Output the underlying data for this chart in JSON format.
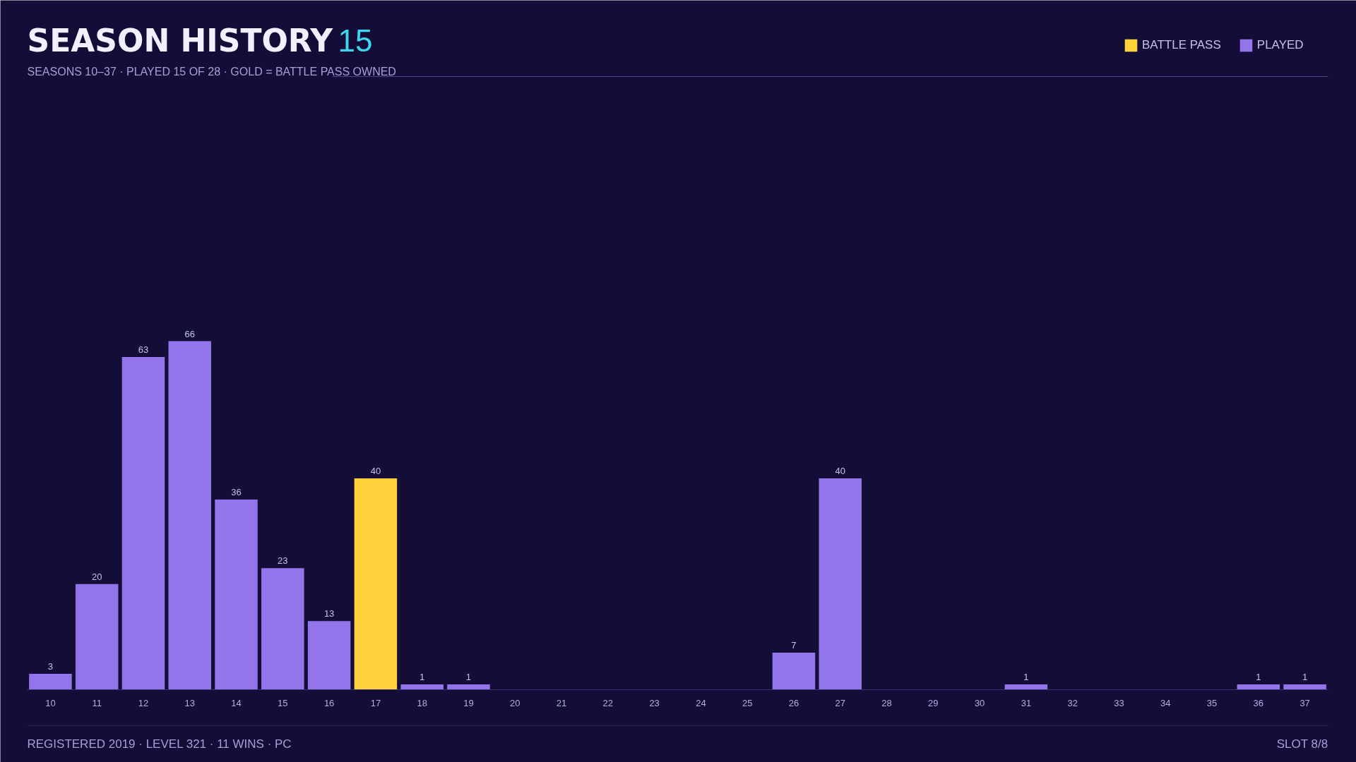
{
  "chart_data": {
    "type": "bar",
    "title": "SEASON HISTORY 15",
    "subtitle": "SEASONS 10–37  ·  PLAYED 15 OF 28  ·  GOLD = BATTLE PASS OWNED",
    "categories": [
      "10",
      "11",
      "12",
      "13",
      "14",
      "15",
      "16",
      "17",
      "18",
      "19",
      "20",
      "21",
      "22",
      "23",
      "24",
      "25",
      "26",
      "27",
      "28",
      "29",
      "30",
      "31",
      "32",
      "33",
      "34",
      "35",
      "36",
      "37"
    ],
    "series": [
      {
        "name": "BATTLE PASS",
        "color": "#ffd23c",
        "values": [
          null,
          null,
          null,
          null,
          null,
          null,
          null,
          40,
          null,
          null,
          null,
          null,
          null,
          null,
          null,
          null,
          null,
          null,
          null,
          null,
          null,
          null,
          null,
          null,
          null,
          null,
          null,
          null
        ]
      },
      {
        "name": "PLAYED",
        "color": "#9275ea",
        "values": [
          3,
          20,
          63,
          66,
          36,
          23,
          13,
          null,
          1,
          1,
          0,
          0,
          0,
          0,
          0,
          0,
          7,
          40,
          0,
          0,
          0,
          1,
          0,
          0,
          0,
          0,
          1,
          1
        ],
        "value_labels": [
          "3",
          "20",
          "63",
          "66",
          "36",
          "23",
          "13",
          null,
          "1",
          "1",
          null,
          null,
          null,
          null,
          null,
          null,
          "7",
          "40",
          null,
          null,
          null,
          "1",
          null,
          null,
          null,
          null,
          "1",
          "1"
        ]
      }
    ],
    "data_labels": true,
    "legend": "top right",
    "grid": false,
    "annotations": [
      "REGISTERED 2019  ·  LEVEL 321  ·  11 WINS  ·  PC",
      "SLOT 8/8"
    ]
  }
}
